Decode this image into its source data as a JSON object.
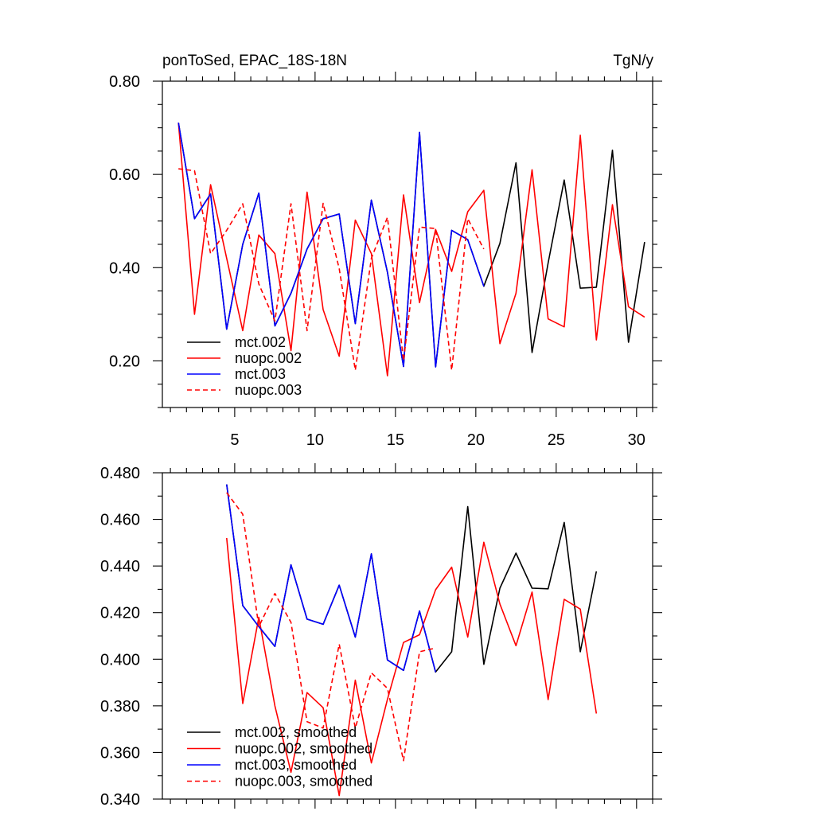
{
  "colors": {
    "mct.002": "#000000",
    "nuopc.002": "#ff0000",
    "mct.003": "#0000ff",
    "nuopc.003": "#ff0000"
  },
  "chart_data": [
    {
      "type": "line",
      "title": "ponToSed, EPAC_18S-18N",
      "units": "TgN/y",
      "xlim": [
        0.5,
        31
      ],
      "ylim": [
        0.1,
        0.8
      ],
      "xticks": [
        5,
        10,
        15,
        20,
        25,
        30
      ],
      "xtick_labels": [
        "5",
        "10",
        "15",
        "20",
        "25",
        "30"
      ],
      "yticks": [
        0.2,
        0.4,
        0.6,
        0.8
      ],
      "ytick_labels": [
        "0.20",
        "0.40",
        "0.60",
        "0.80"
      ],
      "legend_position": "bottom-left",
      "series": [
        {
          "name": "mct.002",
          "style": "solid",
          "x": [
            1.5,
            2.5,
            3.5,
            4.5,
            5.5,
            6.5,
            7.5,
            8.5,
            9.5,
            10.5,
            11.5,
            12.5,
            13.5,
            14.5,
            15.5,
            16.5,
            17.5,
            18.5,
            19.5,
            20.5,
            21.5,
            22.5,
            23.5,
            24.5,
            25.5,
            26.5,
            27.5,
            28.5,
            29.5,
            30.5
          ],
          "values": [
            0.711,
            0.505,
            0.558,
            0.268,
            0.45,
            0.56,
            0.275,
            0.345,
            0.44,
            0.505,
            0.515,
            0.28,
            0.545,
            0.39,
            0.188,
            0.69,
            0.187,
            0.48,
            0.46,
            0.36,
            0.452,
            0.625,
            0.218,
            0.41,
            0.588,
            0.356,
            0.358,
            0.652,
            0.24,
            0.455
          ]
        },
        {
          "name": "nuopc.002",
          "style": "solid",
          "x": [
            1.5,
            2.5,
            3.5,
            4.5,
            5.5,
            6.5,
            7.5,
            8.5,
            9.5,
            10.5,
            11.5,
            12.5,
            13.5,
            14.5,
            15.5,
            16.5,
            17.5,
            18.5,
            19.5,
            20.5,
            21.5,
            22.5,
            23.5,
            24.5,
            25.5,
            26.5,
            27.5,
            28.5,
            29.5,
            30.5
          ],
          "values": [
            0.711,
            0.3,
            0.578,
            0.42,
            0.265,
            0.47,
            0.43,
            0.222,
            0.562,
            0.31,
            0.21,
            0.502,
            0.43,
            0.168,
            0.556,
            0.325,
            0.482,
            0.392,
            0.52,
            0.566,
            0.237,
            0.345,
            0.61,
            0.29,
            0.273,
            0.684,
            0.245,
            0.535,
            0.316,
            0.294
          ]
        },
        {
          "name": "mct.003",
          "style": "solid",
          "x": [
            1.5,
            2.5,
            3.5,
            4.5,
            5.5,
            6.5,
            7.5,
            8.5,
            9.5,
            10.5,
            11.5,
            12.5,
            13.5,
            14.5,
            15.5,
            16.5,
            17.5,
            18.5,
            19.5,
            20.5
          ],
          "values": [
            0.711,
            0.505,
            0.558,
            0.268,
            0.45,
            0.56,
            0.275,
            0.345,
            0.44,
            0.505,
            0.515,
            0.28,
            0.545,
            0.39,
            0.188,
            0.69,
            0.187,
            0.48,
            0.46,
            0.36
          ]
        },
        {
          "name": "nuopc.003",
          "style": "dashed",
          "x": [
            1.5,
            2.5,
            3.5,
            4.5,
            5.5,
            6.5,
            7.5,
            8.5,
            9.5,
            10.5,
            11.5,
            12.5,
            13.5,
            14.5,
            15.5,
            16.5,
            17.5,
            18.5,
            19.5,
            20.5
          ],
          "values": [
            0.612,
            0.608,
            0.43,
            0.48,
            0.537,
            0.365,
            0.285,
            0.537,
            0.265,
            0.538,
            0.398,
            0.18,
            0.42,
            0.508,
            0.2,
            0.487,
            0.484,
            0.18,
            0.505,
            0.44
          ]
        }
      ]
    },
    {
      "type": "line",
      "title": "",
      "xlim": [
        0.5,
        31
      ],
      "ylim": [
        0.34,
        0.48
      ],
      "xticks": [
        5,
        10,
        15,
        20,
        25,
        30
      ],
      "yticks": [
        0.34,
        0.36,
        0.38,
        0.4,
        0.42,
        0.44,
        0.46,
        0.48
      ],
      "ytick_labels": [
        "0.340",
        "0.360",
        "0.380",
        "0.400",
        "0.420",
        "0.440",
        "0.460",
        "0.480"
      ],
      "legend_position": "bottom-left",
      "series": [
        {
          "name": "mct.002, smoothed",
          "color_key": "mct.002",
          "style": "solid",
          "x": [
            4.5,
            5.5,
            6.5,
            7.5,
            8.5,
            9.5,
            10.5,
            11.5,
            12.5,
            13.5,
            14.5,
            15.5,
            16.5,
            17.5,
            18.5,
            19.5,
            20.5,
            21.5,
            22.5,
            23.5,
            24.5,
            25.5,
            26.5,
            27.5
          ],
          "values": [
            0.475,
            0.423,
            0.414,
            0.4055,
            0.4405,
            0.4172,
            0.415,
            0.4318,
            0.4095,
            0.4452,
            0.3997,
            0.3952,
            0.4207,
            0.3945,
            0.4032,
            0.4655,
            0.3978,
            0.4305,
            0.4455,
            0.4305,
            0.4302,
            0.4587,
            0.4032,
            0.4377
          ]
        },
        {
          "name": "nuopc.002, smoothed",
          "color_key": "nuopc.002",
          "style": "solid",
          "x": [
            4.5,
            5.5,
            6.5,
            7.5,
            8.5,
            9.5,
            10.5,
            11.5,
            12.5,
            13.5,
            14.5,
            15.5,
            16.5,
            17.5,
            18.5,
            19.5,
            20.5,
            21.5,
            22.5,
            23.5,
            24.5,
            25.5,
            26.5,
            27.5
          ],
          "values": [
            0.452,
            0.381,
            0.418,
            0.38,
            0.3515,
            0.3857,
            0.3792,
            0.3415,
            0.391,
            0.3555,
            0.3828,
            0.4072,
            0.4105,
            0.4298,
            0.4395,
            0.4095,
            0.4502,
            0.4237,
            0.4058,
            0.4288,
            0.3827,
            0.4257,
            0.4215,
            0.3767
          ]
        },
        {
          "name": "mct.003, smoothed",
          "color_key": "mct.003",
          "style": "solid",
          "x": [
            4.5,
            5.5,
            6.5,
            7.5,
            8.5,
            9.5,
            10.5,
            11.5,
            12.5,
            13.5,
            14.5,
            15.5,
            16.5,
            17.5
          ],
          "values": [
            0.475,
            0.423,
            0.414,
            0.4055,
            0.4405,
            0.4172,
            0.415,
            0.4318,
            0.4095,
            0.4452,
            0.3997,
            0.3952,
            0.4207,
            0.3945
          ]
        },
        {
          "name": "nuopc.003, smoothed",
          "color_key": "nuopc.003",
          "style": "dashed",
          "x": [
            4.5,
            5.5,
            6.5,
            7.5,
            8.5,
            9.5,
            10.5,
            11.5,
            12.5,
            13.5,
            14.5,
            15.5,
            16.5,
            17.5
          ],
          "values": [
            0.4715,
            0.4622,
            0.414,
            0.4282,
            0.4158,
            0.3732,
            0.3705,
            0.4065,
            0.3705,
            0.3942,
            0.3875,
            0.3565,
            0.4032,
            0.4048
          ]
        }
      ]
    }
  ]
}
